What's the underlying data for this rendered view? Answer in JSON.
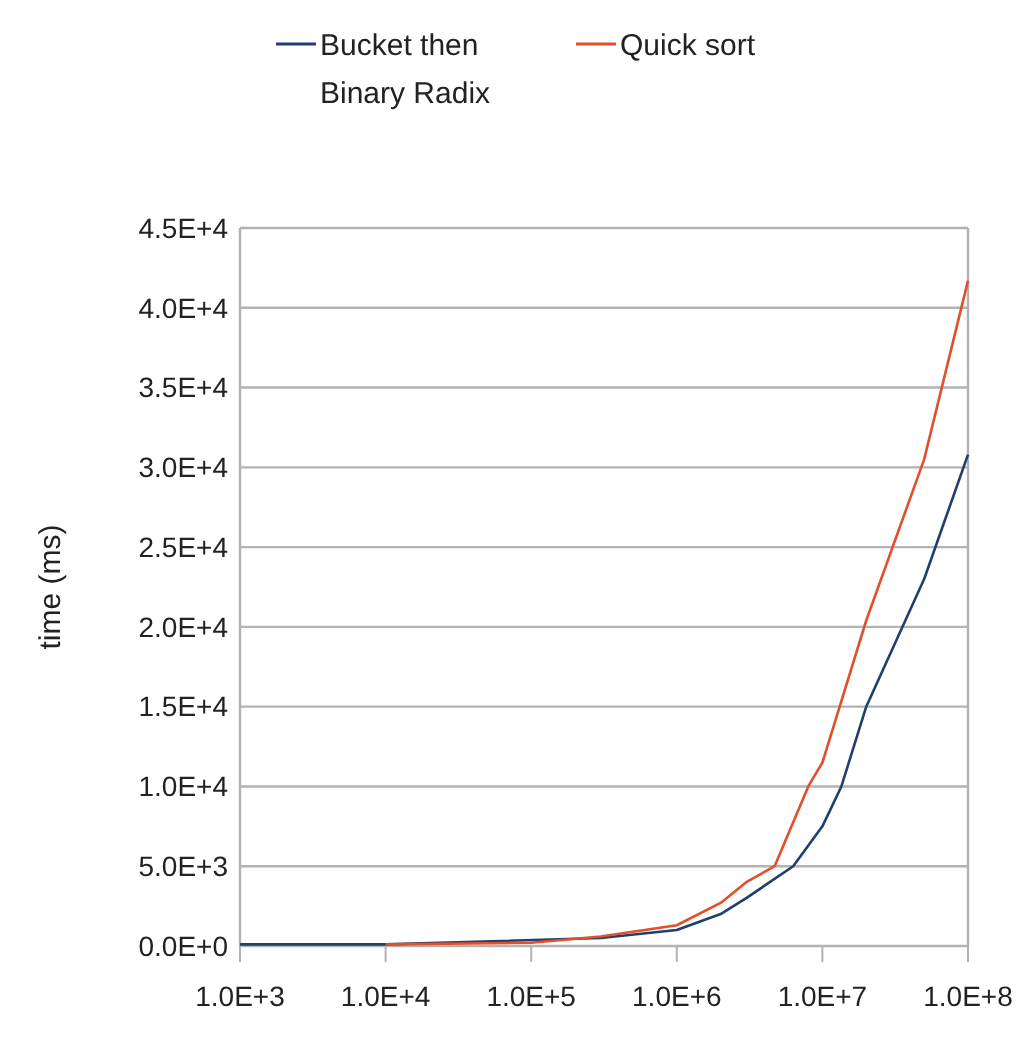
{
  "chart_data": {
    "type": "line",
    "ylabel": "time (ms)",
    "log": "x",
    "xlim": [
      1000,
      100000000
    ],
    "xticks": [
      {
        "value": 1000,
        "label": "1.0E+3"
      },
      {
        "value": 10000,
        "label": "1.0E+4"
      },
      {
        "value": 100000,
        "label": "1.0E+5"
      },
      {
        "value": 1000000,
        "label": "1.0E+6"
      },
      {
        "value": 10000000,
        "label": "1.0E+7"
      },
      {
        "value": 100000000,
        "label": "1.0E+8"
      }
    ],
    "ylim": [
      0,
      45000
    ],
    "yticks": [
      {
        "value": 0,
        "label": "0.0E+0"
      },
      {
        "value": 5000,
        "label": "5.0E+3"
      },
      {
        "value": 10000,
        "label": "1.0E+4"
      },
      {
        "value": 15000,
        "label": "1.5E+4"
      },
      {
        "value": 20000,
        "label": "2.0E+4"
      },
      {
        "value": 25000,
        "label": "2.5E+4"
      },
      {
        "value": 30000,
        "label": "3.0E+4"
      },
      {
        "value": 35000,
        "label": "3.5E+4"
      },
      {
        "value": 40000,
        "label": "4.0E+4"
      },
      {
        "value": 45000,
        "label": "4.5E+4"
      }
    ],
    "grid": "y",
    "legend": "top",
    "marker": "none",
    "line_style": "solid",
    "series": [
      {
        "name": "Bucket then Binary Radix",
        "color": "#1f3f6e",
        "x": [
          1000,
          10000,
          300000,
          1000000,
          2000000,
          3000000,
          6300000,
          10000000,
          13500000,
          20000000,
          50000000,
          100000000
        ],
        "values": [
          100,
          100,
          500,
          1000,
          2000,
          3000,
          5000,
          7500,
          10000,
          15000,
          23000,
          30800
        ]
      },
      {
        "name": "Quick sort",
        "color": "#e0502a",
        "x": [
          10000,
          100000,
          300000,
          1000000,
          2000000,
          3000000,
          4700000,
          8000000,
          10000000,
          20000000,
          50000000,
          100000000
        ],
        "values": [
          100,
          200,
          600,
          1300,
          2700,
          4000,
          5000,
          10000,
          11500,
          20400,
          30500,
          41700
        ]
      }
    ]
  }
}
